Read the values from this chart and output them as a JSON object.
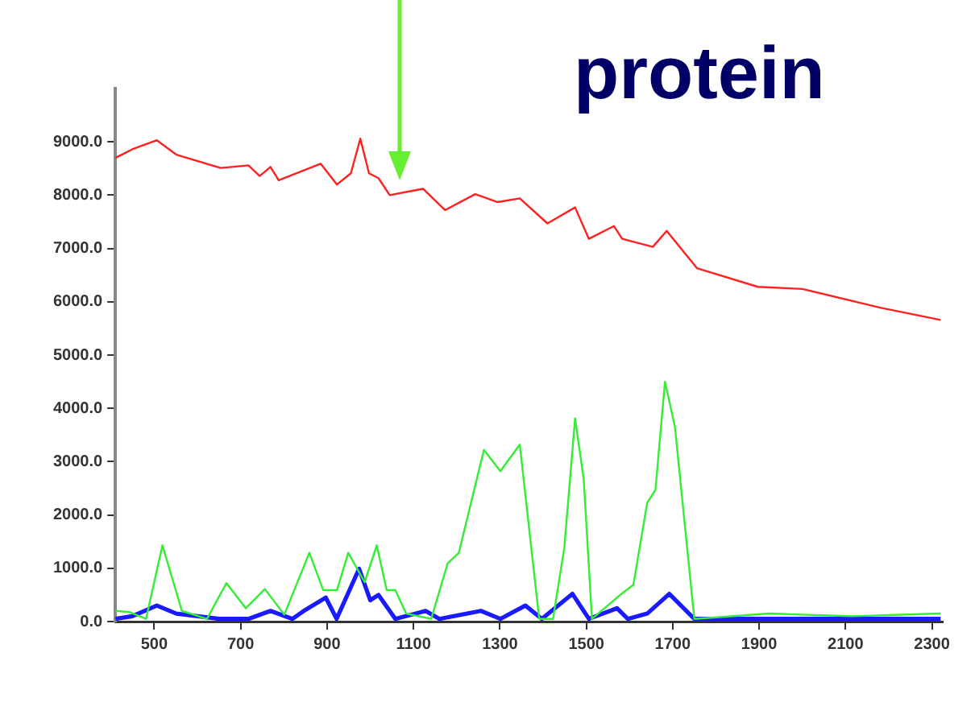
{
  "chart_data": {
    "type": "line",
    "title": "protein",
    "xlim": [
      410,
      2325
    ],
    "xticks": [
      500,
      700,
      900,
      1100,
      1300,
      1500,
      1700,
      1900,
      2100,
      2300
    ],
    "ylim": [
      0,
      10000
    ],
    "yticks": [
      {
        "value": 0,
        "label": "0.0"
      },
      {
        "value": 1000,
        "label": "1000.0"
      },
      {
        "value": 2000,
        "label": "2000.0"
      },
      {
        "value": 3000,
        "label": "3000.0"
      },
      {
        "value": 4000,
        "label": "4000.0"
      },
      {
        "value": 5000,
        "label": "5000.0"
      },
      {
        "value": 6000,
        "label": "6000.0"
      },
      {
        "value": 7000,
        "label": "7000.0"
      },
      {
        "value": 8000,
        "label": "8000.0"
      },
      {
        "value": 9000,
        "label": "9000.0"
      }
    ],
    "grid": false,
    "legend": false,
    "marker": "none",
    "line_style": "solid",
    "series": [
      {
        "color": "#ff2020",
        "x": [
          410,
          449,
          506,
          551,
          654,
          718,
          744,
          769,
          788,
          885,
          923,
          955,
          977,
          997,
          1019,
          1045,
          1122,
          1173,
          1243,
          1295,
          1346,
          1410,
          1474,
          1506,
          1564,
          1583,
          1654,
          1686,
          1756,
          1897,
          2000,
          2180,
          2320
        ],
        "values": [
          8700,
          8860,
          9030,
          8760,
          8510,
          8560,
          8360,
          8530,
          8280,
          8590,
          8200,
          8410,
          9060,
          8410,
          8320,
          8000,
          8120,
          7720,
          8020,
          7870,
          7940,
          7470,
          7770,
          7180,
          7420,
          7180,
          7030,
          7330,
          6630,
          6280,
          6240,
          5890,
          5660
        ]
      },
      {
        "color": "#33ee33",
        "x": [
          410,
          442,
          481,
          519,
          564,
          622,
          667,
          712,
          756,
          801,
          859,
          891,
          923,
          949,
          987,
          1015,
          1038,
          1058,
          1083,
          1141,
          1179,
          1205,
          1263,
          1301,
          1346,
          1391,
          1423,
          1449,
          1474,
          1494,
          1513,
          1577,
          1609,
          1641,
          1660,
          1682,
          1705,
          1750,
          1923,
          2115,
          2320
        ],
        "values": [
          200,
          180,
          50,
          1430,
          200,
          50,
          720,
          250,
          610,
          130,
          1290,
          590,
          590,
          1290,
          740,
          1430,
          590,
          590,
          150,
          50,
          1090,
          1290,
          3220,
          2820,
          3320,
          50,
          50,
          1380,
          3810,
          2670,
          50,
          490,
          690,
          2230,
          2470,
          4500,
          3660,
          50,
          150,
          100,
          150
        ]
      },
      {
        "color": "#1a1aff",
        "x": [
          410,
          449,
          506,
          551,
          650,
          718,
          769,
          820,
          846,
          897,
          922,
          974,
          1000,
          1019,
          1058,
          1128,
          1160,
          1256,
          1301,
          1359,
          1397,
          1468,
          1506,
          1571,
          1596,
          1641,
          1692,
          1750,
          2320
        ],
        "values": [
          50,
          100,
          300,
          150,
          50,
          50,
          200,
          50,
          200,
          450,
          50,
          990,
          400,
          500,
          50,
          200,
          50,
          200,
          50,
          300,
          50,
          520,
          50,
          250,
          50,
          150,
          520,
          50,
          50
        ]
      }
    ]
  }
}
